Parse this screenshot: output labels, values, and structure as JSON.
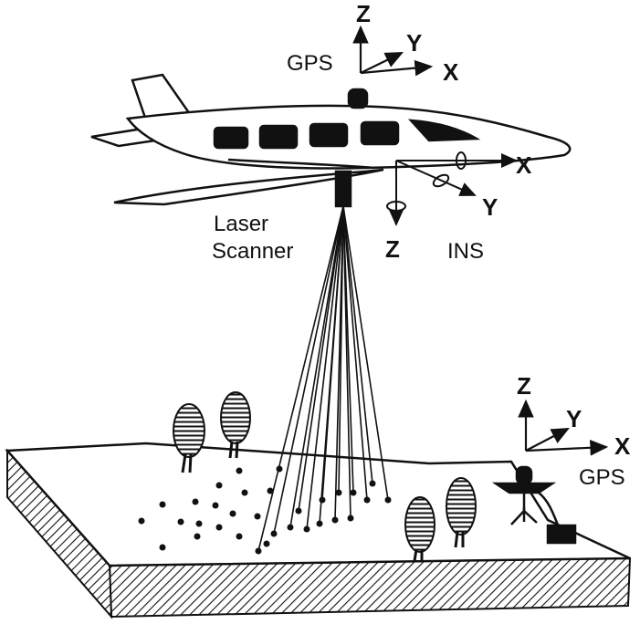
{
  "labels": {
    "aircraft_gps": "GPS",
    "aircraft_axis_z": "Z",
    "aircraft_axis_y": "Y",
    "aircraft_axis_x": "X",
    "laser_line1": "Laser",
    "laser_line2": "Scanner",
    "ins": "INS",
    "ins_axis_x": "X",
    "ins_axis_y": "Y",
    "ins_axis_z": "Z",
    "ground_axis_z": "Z",
    "ground_axis_y": "Y",
    "ground_axis_x": "X",
    "ground_gps": "GPS"
  },
  "colors": {
    "ink": "#111111",
    "paper": "#ffffff"
  }
}
